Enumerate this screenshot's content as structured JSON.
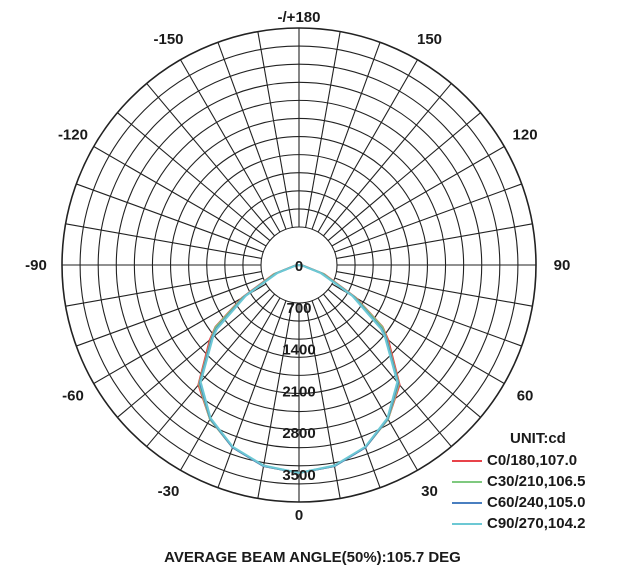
{
  "chart_data": {
    "type": "polar",
    "unit_label": "UNIT:cd",
    "angle_labels": [
      "-/+180",
      "150",
      "120",
      "90",
      "60",
      "30",
      "0",
      "-30",
      "-60",
      "-90",
      "-120",
      "-150"
    ],
    "angle_values": [
      180,
      150,
      120,
      90,
      60,
      30,
      0,
      -30,
      -60,
      -90,
      -120,
      -150
    ],
    "radial_ticks": [
      "0",
      "700",
      "1400",
      "2100",
      "2800",
      "3500"
    ],
    "rlim": [
      0,
      3500
    ],
    "series": [
      {
        "name": "C0/180,107.0",
        "color": "#e8434a",
        "angles": [
          0,
          10,
          20,
          30,
          40,
          50,
          53.5,
          60,
          70,
          80,
          90
        ],
        "values": [
          3480,
          3420,
          3250,
          2980,
          2620,
          1950,
          1740,
          1100,
          450,
          80,
          0
        ]
      },
      {
        "name": "C30/210,106.5",
        "color": "#7fc97f",
        "angles": [
          0,
          10,
          20,
          30,
          40,
          50,
          53.3,
          60,
          70,
          80,
          90
        ],
        "values": [
          3480,
          3420,
          3250,
          2980,
          2600,
          1920,
          1740,
          1080,
          430,
          70,
          0
        ]
      },
      {
        "name": "C60/240,105.0",
        "color": "#4a7fc0",
        "angles": [
          0,
          10,
          20,
          30,
          40,
          50,
          52.5,
          60,
          70,
          80,
          90
        ],
        "values": [
          3480,
          3420,
          3250,
          2970,
          2580,
          1900,
          1740,
          1050,
          400,
          60,
          0
        ]
      },
      {
        "name": "C90/270,104.2",
        "color": "#6cc8d4",
        "angles": [
          0,
          10,
          20,
          30,
          40,
          50,
          52.1,
          60,
          70,
          80,
          90
        ],
        "values": [
          3480,
          3410,
          3240,
          2960,
          2560,
          1880,
          1740,
          1030,
          380,
          50,
          0
        ]
      }
    ],
    "footer": "AVERAGE BEAM ANGLE(50%):105.7 DEG",
    "grid": true
  }
}
